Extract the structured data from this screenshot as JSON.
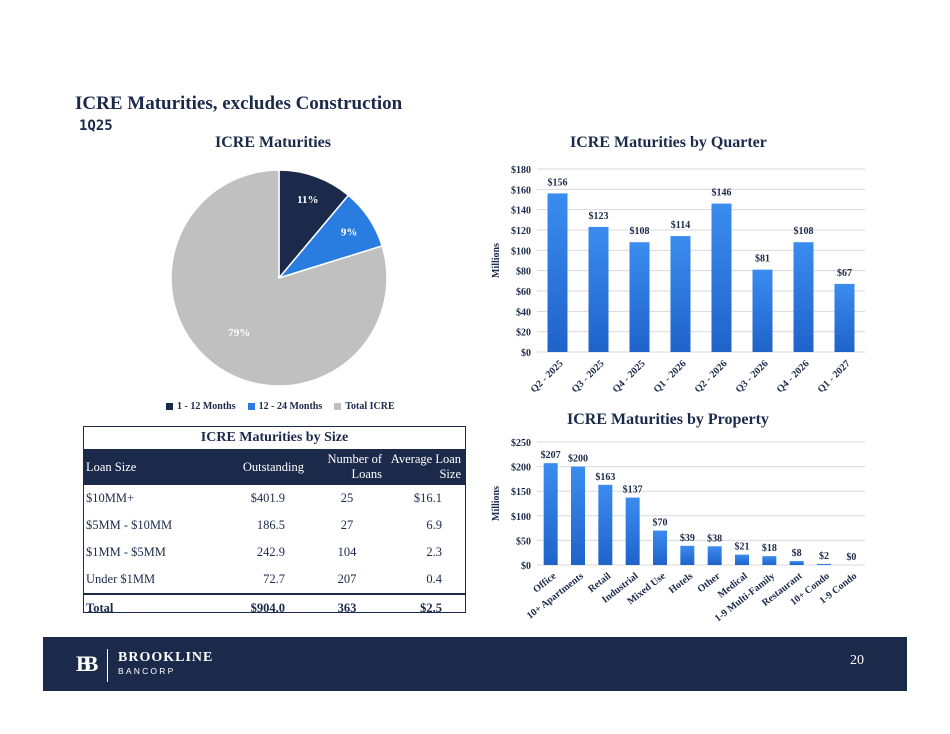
{
  "header": {
    "title": "ICRE Maturities, excludes Construction",
    "subtitle": "1Q25"
  },
  "colors": {
    "navy": "#1b2a4a",
    "blue": "#2a7de0",
    "gray": "#c0c0c0",
    "bar": "#2a7de0"
  },
  "chart_data": [
    {
      "type": "pie",
      "title": "ICRE Maturities",
      "slices": [
        {
          "label": "1 - 12 Months",
          "value": 11,
          "display": "11%",
          "color": "#1b2a4a"
        },
        {
          "label": "12 - 24 Months",
          "value": 9,
          "display": "9%",
          "color": "#2a7de0"
        },
        {
          "label": "Total ICRE",
          "value": 79,
          "display": "79%",
          "color": "#c0c0c0"
        }
      ],
      "legend": "bottom"
    },
    {
      "type": "bar",
      "title": "ICRE Maturities by Quarter",
      "ylabel": "Millions",
      "categories": [
        "Q2 - 2025",
        "Q3 - 2025",
        "Q4 - 2025",
        "Q1 - 2026",
        "Q2 - 2026",
        "Q3 - 2026",
        "Q4 - 2026",
        "Q1 - 2027"
      ],
      "values": [
        156,
        123,
        108,
        114,
        146,
        81,
        108,
        67
      ],
      "data_labels": [
        "$156",
        "$123",
        "$108",
        "$114",
        "$146",
        "$81",
        "$108",
        "$67"
      ],
      "yticks": [
        "$0",
        "$20",
        "$40",
        "$60",
        "$80",
        "$100",
        "$120",
        "$140",
        "$160",
        "$180"
      ],
      "ylim": [
        0,
        180
      ],
      "grid": true
    },
    {
      "type": "bar",
      "title": "ICRE Maturities by Property",
      "ylabel": "Millions",
      "categories": [
        "Office",
        "10+ Apartments",
        "Retail",
        "Industrial",
        "Mixed Use",
        "Hotels",
        "Other",
        "Medical",
        "1-9 Multi-Family",
        "Restaurant",
        "10+ Condo",
        "1-9 Condo"
      ],
      "values": [
        207,
        200,
        163,
        137,
        70,
        39,
        38,
        21,
        18,
        8,
        2,
        0
      ],
      "data_labels": [
        "$207",
        "$200",
        "$163",
        "$137",
        "$70",
        "$39",
        "$38",
        "$21",
        "$18",
        "$8",
        "$2",
        "$0"
      ],
      "yticks": [
        "$0",
        "$50",
        "$100",
        "$150",
        "$200",
        "$250"
      ],
      "ylim": [
        0,
        250
      ],
      "grid": true
    },
    {
      "type": "table",
      "title": "ICRE Maturities by Size",
      "columns": [
        "Loan Size",
        "Outstanding",
        "Number of Loans",
        "Average Loan Size"
      ],
      "rows": [
        [
          "$10MM+",
          "$401.9",
          "25",
          "$16.1"
        ],
        [
          "$5MM - $10MM",
          "186.5",
          "27",
          "6.9"
        ],
        [
          "$1MM - $5MM",
          "242.9",
          "104",
          "2.3"
        ],
        [
          "Under $1MM",
          "72.7",
          "207",
          "0.4"
        ]
      ],
      "total": [
        "Total",
        "$904.0",
        "363",
        "$2.5"
      ]
    }
  ],
  "footer": {
    "brand": "BROOKLINE",
    "brand_sub": "BANCORP",
    "logo_mark": "BB",
    "page_number": "20"
  }
}
